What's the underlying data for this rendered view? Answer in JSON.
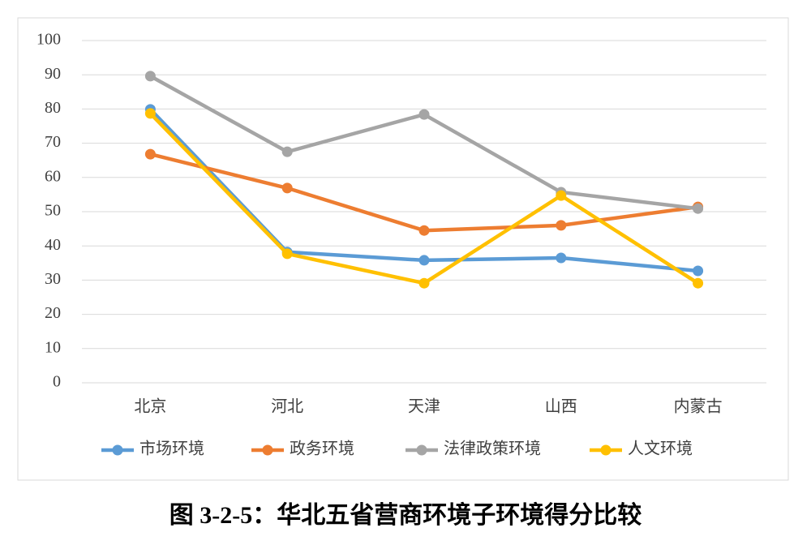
{
  "chart_data": {
    "type": "line",
    "title": "图 3-2-5：华北五省营商环境子环境得分比较",
    "categories": [
      "北京",
      "河北",
      "天津",
      "山西",
      "内蒙古"
    ],
    "series": [
      {
        "name": "市场环境",
        "color": "#5b9bd5",
        "values": [
          79.9,
          38.2,
          35.8,
          36.5,
          32.7
        ]
      },
      {
        "name": "政务环境",
        "color": "#ed7d31",
        "values": [
          66.8,
          56.9,
          44.5,
          46,
          51.4
        ]
      },
      {
        "name": "法律政策环境",
        "color": "#a5a5a5",
        "values": [
          89.6,
          67.5,
          78.4,
          55.7,
          50.9
        ]
      },
      {
        "name": "人文环境",
        "color": "#ffc000",
        "values": [
          78.7,
          37.7,
          29.1,
          54.7,
          29.1
        ]
      }
    ],
    "ylim": [
      0,
      100
    ],
    "yticks": [
      0,
      10,
      20,
      30,
      40,
      50,
      60,
      70,
      80,
      90,
      100
    ],
    "grid": true,
    "legend": "bottom"
  }
}
